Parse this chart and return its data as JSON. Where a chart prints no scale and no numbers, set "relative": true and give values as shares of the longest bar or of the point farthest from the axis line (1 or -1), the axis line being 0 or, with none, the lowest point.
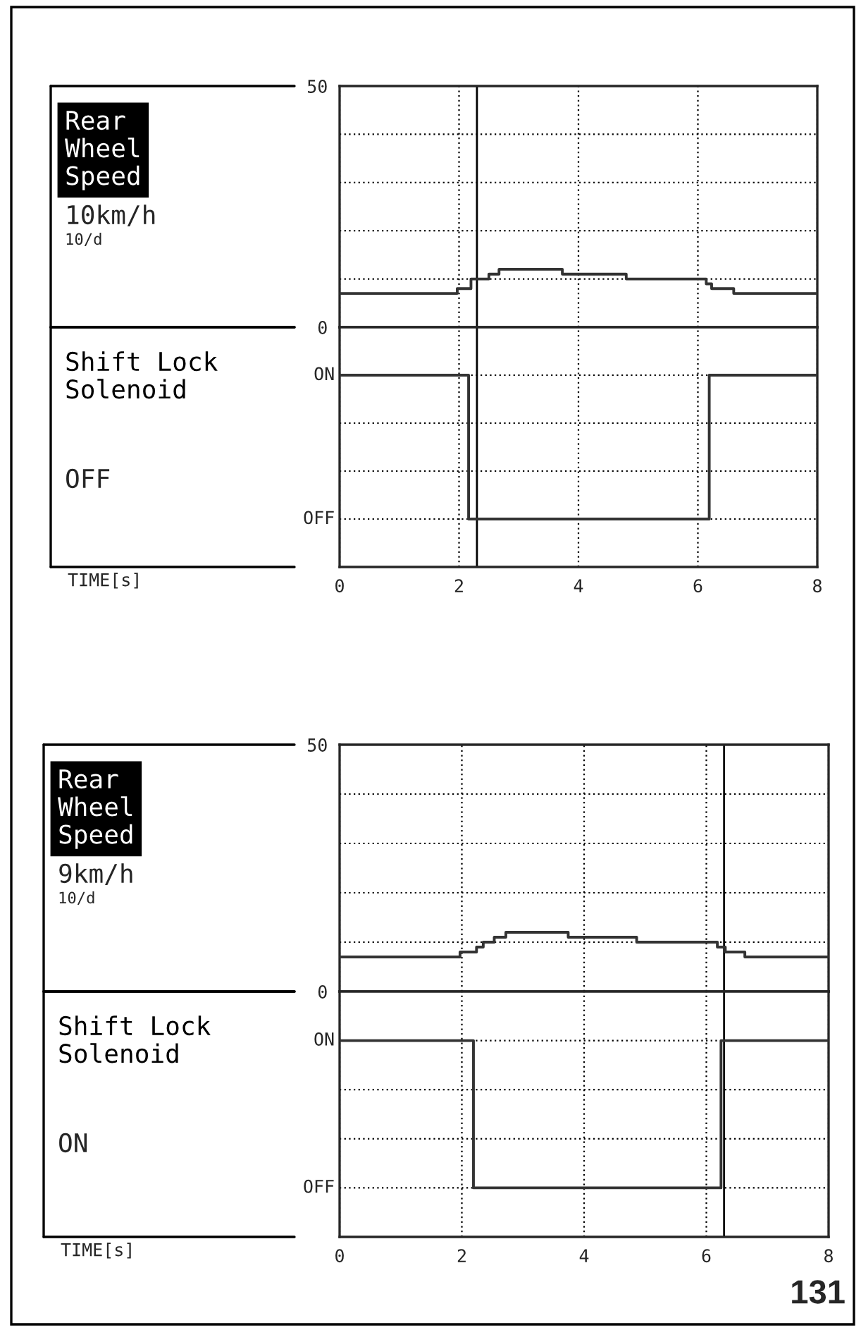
{
  "chart_data": [
    {
      "type": "step",
      "ylabel": "Rear\nWheel\nSpeed",
      "annotations": [
        "10km/h",
        "10/d"
      ],
      "x": [
        0,
        1.97,
        2.2,
        2.5,
        2.67,
        3.73,
        4.8,
        6.14,
        6.23,
        6.6,
        8
      ],
      "values": [
        7,
        8,
        10,
        11,
        12,
        11,
        10,
        9,
        8,
        7,
        7
      ],
      "color": "#333333",
      "xlim": [
        0,
        8
      ],
      "xticks": [
        0,
        2,
        4,
        6,
        8
      ],
      "ylim": [
        0,
        50
      ],
      "yticks": [
        0,
        {
          "value": 10,
          "label": null
        },
        {
          "value": 20,
          "label": null
        },
        {
          "value": 30,
          "label": null
        },
        {
          "value": 40,
          "label": null
        },
        50
      ],
      "grid": true,
      "tick_labels": "y",
      "ref_lines": [
        {
          "axis": "x",
          "value": 2.3,
          "color": "#000000"
        }
      ]
    },
    {
      "type": "step",
      "ylabel": "Shift Lock\nSolenoid",
      "annotations": [
        "OFF",
        "TIME[s]",
        "ON",
        "OFF"
      ],
      "x": [
        0,
        2.16,
        6.19,
        8
      ],
      "values": [
        1,
        0,
        1,
        1
      ],
      "relative": true,
      "color": "#333333",
      "xlim": [
        0,
        8
      ],
      "xticks": [
        0,
        2,
        4,
        6,
        8
      ],
      "grid": true,
      "ref_lines": [
        {
          "axis": "x",
          "value": 2.3,
          "color": "#000000"
        }
      ]
    },
    {
      "type": "step",
      "ylabel": "Rear\nWheel\nSpeed",
      "annotations": [
        "9km/h",
        "10/d"
      ],
      "x": [
        0,
        1.97,
        2.24,
        2.35,
        2.53,
        2.72,
        3.74,
        4.86,
        6.18,
        6.31,
        6.63,
        8
      ],
      "values": [
        7,
        8,
        9,
        10,
        11,
        12,
        11,
        10,
        9,
        8,
        7,
        7
      ],
      "color": "#333333",
      "xlim": [
        0,
        8
      ],
      "xticks": [
        0,
        2,
        4,
        6,
        8
      ],
      "ylim": [
        0,
        50
      ],
      "yticks": [
        0,
        {
          "value": 10,
          "label": null
        },
        {
          "value": 20,
          "label": null
        },
        {
          "value": 30,
          "label": null
        },
        {
          "value": 40,
          "label": null
        },
        50
      ],
      "grid": true,
      "tick_labels": "y",
      "ref_lines": [
        {
          "axis": "x",
          "value": 6.29,
          "color": "#000000"
        }
      ]
    },
    {
      "type": "step",
      "ylabel": "Shift Lock\nSolenoid",
      "annotations": [
        "ON",
        "TIME[s]",
        "131",
        "ON",
        "OFF"
      ],
      "x": [
        0,
        2.19,
        6.24,
        8
      ],
      "values": [
        1,
        0,
        1,
        1
      ],
      "relative": true,
      "color": "#333333",
      "xlim": [
        0,
        8
      ],
      "xticks": [
        0,
        2,
        4,
        6,
        8
      ],
      "grid": true,
      "ref_lines": [
        {
          "axis": "x",
          "value": 6.29,
          "color": "#000000"
        }
      ]
    }
  ]
}
